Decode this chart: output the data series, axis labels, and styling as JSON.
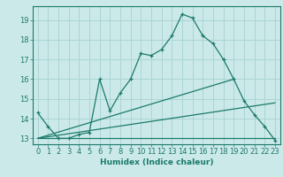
{
  "xlabel": "Humidex (Indice chaleur)",
  "bg_color": "#cce9e9",
  "grid_color": "#aad4d4",
  "line_color": "#1a7a6a",
  "xlim": [
    -0.5,
    23.5
  ],
  "ylim": [
    12.7,
    19.7
  ],
  "yticks": [
    13,
    14,
    15,
    16,
    17,
    18,
    19
  ],
  "xticks": [
    0,
    1,
    2,
    3,
    4,
    5,
    6,
    7,
    8,
    9,
    10,
    11,
    12,
    13,
    14,
    15,
    16,
    17,
    18,
    19,
    20,
    21,
    22,
    23
  ],
  "main_line": {
    "x": [
      0,
      1,
      2,
      3,
      4,
      5,
      6,
      7,
      8,
      9,
      10,
      11,
      12,
      13,
      14,
      15,
      16,
      17,
      18,
      19,
      20,
      21,
      22,
      23
    ],
    "y": [
      14.3,
      13.6,
      13.0,
      13.0,
      13.2,
      13.3,
      16.0,
      14.4,
      15.3,
      16.0,
      17.3,
      17.2,
      17.5,
      18.2,
      19.3,
      19.1,
      18.2,
      17.8,
      17.0,
      16.0,
      14.9,
      14.2,
      13.6,
      12.9
    ]
  },
  "line_flat": {
    "x": [
      0,
      23
    ],
    "y": [
      13.0,
      13.0
    ]
  },
  "line_diag1": {
    "x": [
      0,
      19
    ],
    "y": [
      13.0,
      16.0
    ]
  },
  "line_diag2": {
    "x": [
      0,
      23
    ],
    "y": [
      13.0,
      14.8
    ]
  },
  "xlabel_fontsize": 6.5,
  "tick_fontsize": 6
}
